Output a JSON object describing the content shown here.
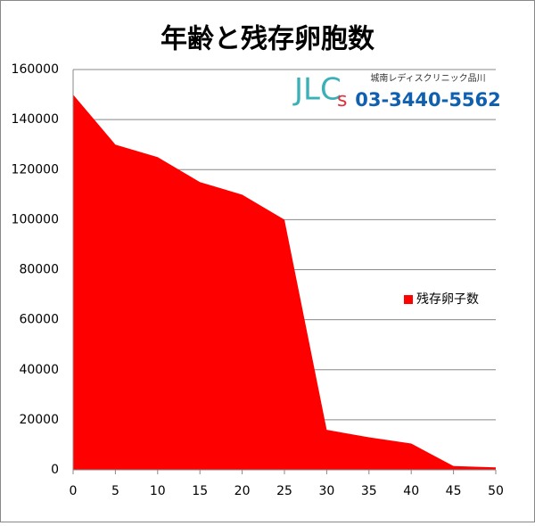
{
  "chart_data": {
    "type": "area",
    "title": "年齢と残存卵胞数",
    "x": [
      0,
      5,
      10,
      15,
      20,
      25,
      30,
      35,
      40,
      45,
      50
    ],
    "series": [
      {
        "name": "残存卵子数",
        "color": "#ff0000",
        "values": [
          150000,
          130000,
          125000,
          115000,
          110000,
          100000,
          16000,
          13000,
          10500,
          1500,
          1000
        ]
      }
    ],
    "xlim": [
      0,
      50
    ],
    "xticks": [
      0,
      5,
      10,
      15,
      20,
      25,
      30,
      35,
      40,
      45,
      50
    ],
    "ylim": [
      0,
      160000
    ],
    "yticks": [
      0,
      20000,
      40000,
      60000,
      80000,
      100000,
      120000,
      140000,
      160000
    ],
    "grid": true,
    "legend": "right"
  },
  "logo": {
    "mark": "JLC",
    "mark_s": "s",
    "clinic": "城南レディスクリニック品川",
    "phone": "03-3440-5562"
  }
}
